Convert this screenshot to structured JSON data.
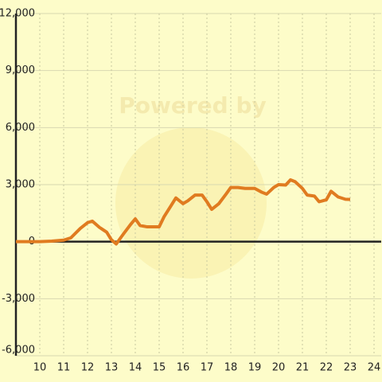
{
  "chart_data": {
    "type": "line",
    "watermark": "Powered by",
    "x": [
      9,
      10,
      10.5,
      11,
      11.3,
      11.7,
      12,
      12.2,
      12.5,
      12.8,
      13,
      13.2,
      13.5,
      13.8,
      14,
      14.2,
      14.5,
      15,
      15.2,
      15.5,
      15.7,
      16,
      16.2,
      16.5,
      16.8,
      17,
      17.2,
      17.5,
      17.8,
      18,
      18.3,
      18.6,
      19,
      19.3,
      19.5,
      19.8,
      20,
      20.3,
      20.5,
      20.7,
      21,
      21.2,
      21.5,
      21.7,
      22,
      22.2,
      22.5,
      22.8,
      23
    ],
    "series": [
      {
        "color": "#e07b20",
        "values": [
          0,
          0,
          30,
          80,
          200,
          700,
          1000,
          1080,
          750,
          500,
          100,
          -120,
          400,
          900,
          1200,
          850,
          780,
          780,
          1300,
          1900,
          2300,
          2000,
          2150,
          2450,
          2450,
          2100,
          1700,
          2000,
          2500,
          2850,
          2850,
          2800,
          2800,
          2600,
          2500,
          2850,
          3000,
          2980,
          3250,
          3150,
          2800,
          2450,
          2400,
          2100,
          2200,
          2650,
          2350,
          2230,
          2220
        ]
      }
    ],
    "xlim": [
      9,
      24.3
    ],
    "xticks": [
      10,
      11,
      12,
      13,
      14,
      15,
      16,
      17,
      18,
      19,
      20,
      21,
      22,
      23,
      24
    ],
    "ylim": [
      -6000,
      12000
    ],
    "yticks": [
      {
        "value": -6000,
        "label": "-6,000"
      },
      {
        "value": -3000,
        "label": "-3,000"
      },
      0,
      {
        "value": 3000,
        "label": "3,000"
      },
      {
        "value": 6000,
        "label": "6,000"
      },
      {
        "value": 9000,
        "label": "9,000"
      },
      {
        "value": 12000,
        "label": "12,000"
      }
    ],
    "grid": true
  }
}
